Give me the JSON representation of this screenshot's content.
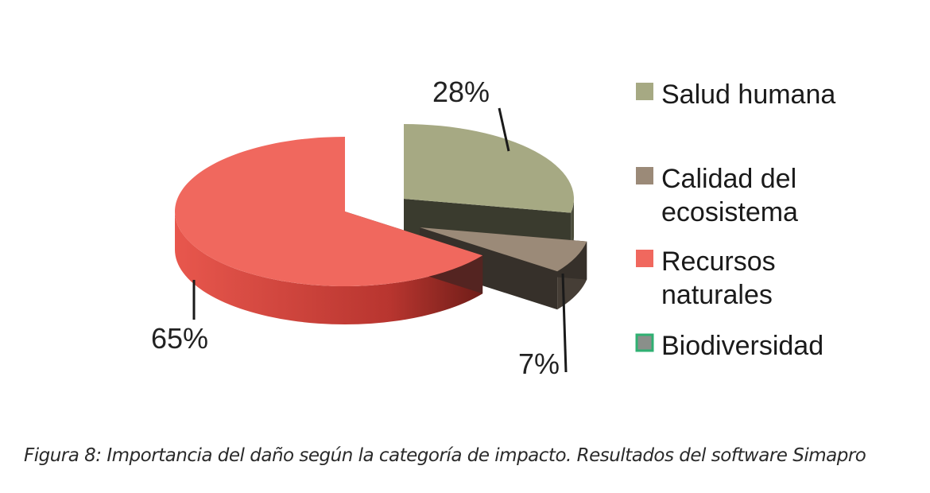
{
  "chart_data": {
    "type": "pie",
    "style": "3d-exploded",
    "categories": [
      "Salud humana",
      "Calidad del ecosistema",
      "Recursos naturales",
      "Biodiversidad"
    ],
    "values": [
      28,
      7,
      65,
      0
    ],
    "value_labels": [
      "28%",
      "7%",
      "65%",
      ""
    ],
    "legend_lines": [
      [
        "Salud humana"
      ],
      [
        "Calidad del",
        "ecosistema"
      ],
      [
        "Recursos",
        "naturales"
      ],
      [
        "Biodiversidad"
      ]
    ],
    "colors": {
      "Salud humana": "#a6a983",
      "Calidad del ecosistema": "#9b8a78",
      "Recursos naturales": "#f0685e",
      "Biodiversidad": "#2fb072"
    },
    "legend_position": "right"
  },
  "caption": "Figura 8: Importancia del daño según la categoría de impacto. Resultados del software Simapro"
}
